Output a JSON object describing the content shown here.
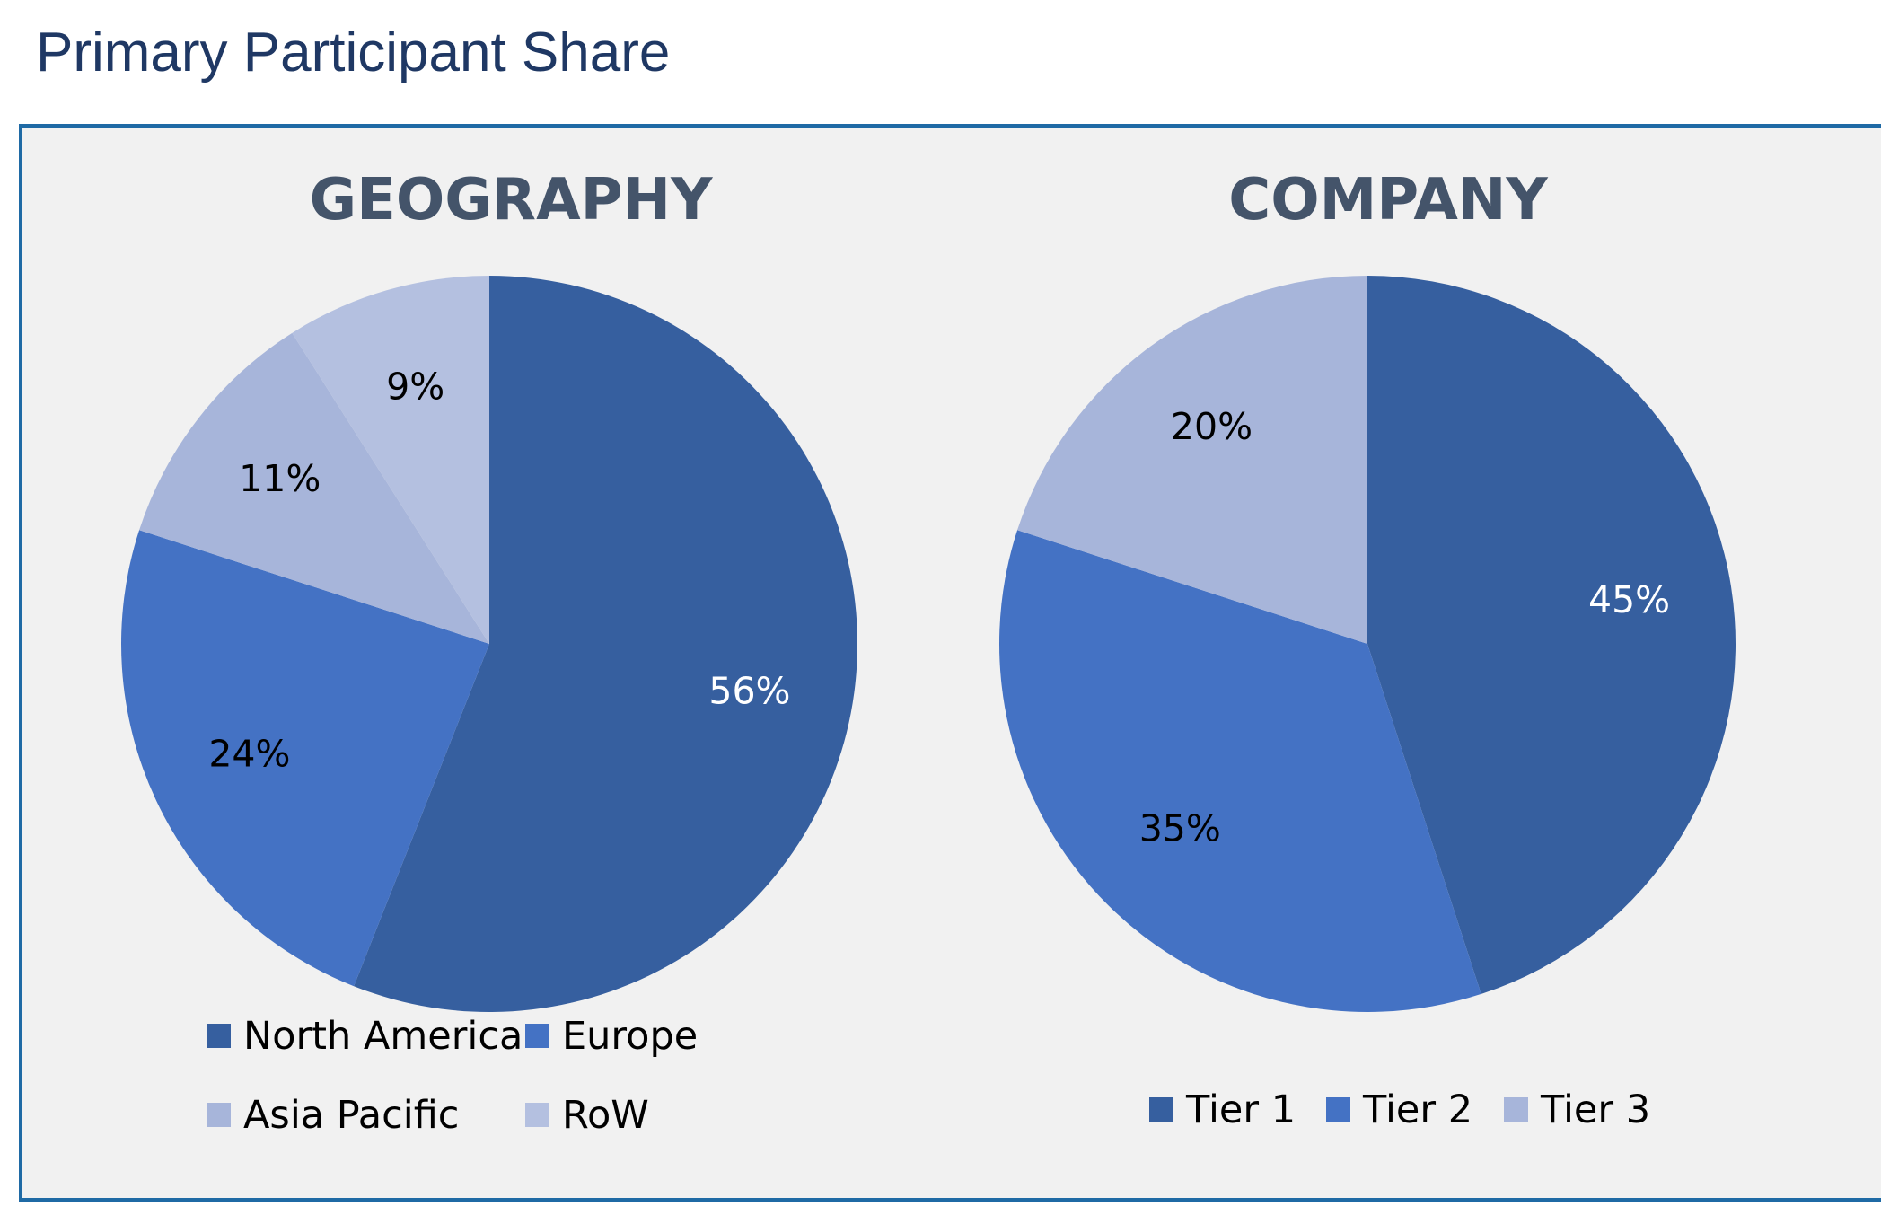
{
  "page": {
    "title": "Primary Participant Share"
  },
  "colors": {
    "panel_border": "#1f6aa5",
    "panel_background": "#f1f1f1",
    "title_text": "#1f3864",
    "chart_title": "#44546a"
  },
  "chart_data": [
    {
      "type": "pie",
      "title": "GEOGRAPHY",
      "categories": [
        "North America",
        "Europe",
        "Asia Pacific",
        "RoW"
      ],
      "values": [
        56,
        24,
        11,
        9
      ],
      "value_labels": [
        "56%",
        "24%",
        "11%",
        "9%"
      ],
      "colors": [
        "#365f9f",
        "#4472c4",
        "#a7b5da",
        "#b4c0e0"
      ],
      "label_colors": [
        "#ffffff",
        "#000000",
        "#000000",
        "#000000"
      ],
      "start": "12 o'clock",
      "direction": "clockwise",
      "legend_position": "bottom",
      "legend_columns": 2
    },
    {
      "type": "pie",
      "title": "COMPANY",
      "categories": [
        "Tier 1",
        "Tier 2",
        "Tier 3"
      ],
      "values": [
        45,
        35,
        20
      ],
      "value_labels": [
        "45%",
        "35%",
        "20%"
      ],
      "colors": [
        "#365f9f",
        "#4472c4",
        "#a7b5da"
      ],
      "label_colors": [
        "#ffffff",
        "#000000",
        "#000000"
      ],
      "start": "12 o'clock",
      "direction": "clockwise",
      "legend_position": "bottom",
      "legend_columns": 3
    }
  ]
}
